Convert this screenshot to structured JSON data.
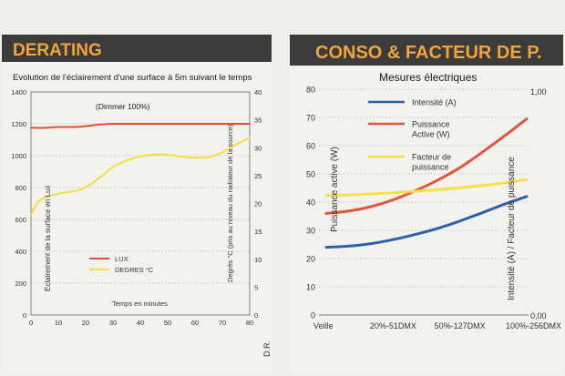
{
  "chart_data": [
    {
      "type": "line",
      "header": "DERATING",
      "title": "Evolution de l'éclairement d'une surface à 5m suivant le temps",
      "annotation": "(Dimmer 100%)",
      "xlabel": "Temps en minutes",
      "ylabel": "Eclairement de la surface en Lux",
      "y2label": "Degrés °C (pris au niveau du radiateur de la source)",
      "footnote": "D.R.",
      "x_ticks": [
        0,
        10,
        20,
        30,
        40,
        50,
        60,
        70,
        80
      ],
      "y_ticks": [
        0,
        200,
        400,
        600,
        800,
        1000,
        1200,
        1400
      ],
      "y2_ticks": [
        0,
        5,
        10,
        15,
        20,
        25,
        30,
        35,
        40
      ],
      "xlim": [
        0,
        80
      ],
      "ylim": [
        0,
        1400
      ],
      "y2lim": [
        0,
        40
      ],
      "grid": true,
      "legend_position": "bottom-left",
      "series": [
        {
          "name": "LUX",
          "axis": "left",
          "color": "#d9533a",
          "x": [
            0,
            5,
            10,
            15,
            20,
            25,
            30,
            35,
            40,
            50,
            60,
            70,
            80
          ],
          "y": [
            1175,
            1175,
            1180,
            1180,
            1185,
            1195,
            1200,
            1200,
            1200,
            1200,
            1200,
            1200,
            1200
          ]
        },
        {
          "name": "DEGRES °C",
          "axis": "right",
          "color": "#f2df42",
          "x": [
            0,
            3,
            8,
            13,
            18,
            22,
            26,
            30,
            34,
            38,
            42,
            47,
            52,
            57,
            62,
            66,
            70,
            74,
            78,
            80
          ],
          "y": [
            18,
            20.5,
            21.5,
            22,
            22.5,
            23.5,
            25,
            26.5,
            27.5,
            28.2,
            28.6,
            28.8,
            28.6,
            28.3,
            28.2,
            28.4,
            29.2,
            30.3,
            31.3,
            31.8
          ]
        }
      ]
    },
    {
      "type": "line",
      "header": "CONSO & FACTEUR DE P.",
      "title": "Mesures électriques",
      "ylabel": "Puissance active (W)",
      "y2label": "Intensité (A) / Facteur de puissance",
      "categories": [
        "Veille",
        "20%-51DMX",
        "50%-127DMX",
        "100%-256DMX"
      ],
      "y_ticks": [
        0,
        10,
        20,
        30,
        40,
        50,
        60,
        70,
        80
      ],
      "y2_ticks": [
        "0,00",
        "1,00"
      ],
      "ylim": [
        0,
        80
      ],
      "y2lim": [
        0,
        1
      ],
      "grid": true,
      "legend_position": "top-left",
      "series": [
        {
          "name": "Intensité (A)",
          "color": "#2d62a8",
          "x": [
            0,
            0.33,
            0.67,
            1.0,
            1.33,
            1.67,
            2.0,
            2.33,
            2.67,
            3.0
          ],
          "y": [
            24,
            24.4,
            25.3,
            26.7,
            28.5,
            30.7,
            33.3,
            36.2,
            39.3,
            42
          ]
        },
        {
          "name": "Puissance Active (W)",
          "color": "#e2553c",
          "x": [
            0,
            0.33,
            0.67,
            1.0,
            1.33,
            1.67,
            2.0,
            2.33,
            2.67,
            3.0
          ],
          "y": [
            36,
            36.8,
            38.4,
            40.8,
            44,
            47.8,
            52.2,
            57.6,
            63.5,
            69.5
          ]
        },
        {
          "name": "Facteur de puissance",
          "color": "#f6e04a",
          "x": [
            0,
            0.5,
            1.0,
            1.5,
            2.0,
            2.5,
            3.0
          ],
          "y": [
            42.3,
            42.7,
            43.3,
            44.1,
            45.1,
            46.3,
            48
          ]
        }
      ]
    }
  ]
}
